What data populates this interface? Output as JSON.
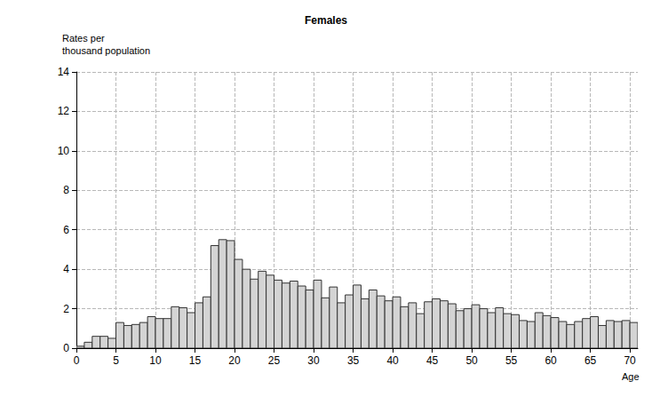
{
  "chart_data": {
    "type": "histogram",
    "title": "Females",
    "y_label": "Rates per\nthousand population",
    "x_label": "Age",
    "bins": [
      0,
      1,
      2,
      3,
      4,
      5,
      6,
      7,
      8,
      9,
      10,
      11,
      12,
      13,
      14,
      15,
      16,
      17,
      18,
      19,
      20,
      21,
      22,
      23,
      24,
      25,
      26,
      27,
      28,
      29,
      30,
      31,
      32,
      33,
      34,
      35,
      36,
      37,
      38,
      39,
      40,
      41,
      42,
      43,
      44,
      45,
      46,
      47,
      48,
      49,
      50,
      51,
      52,
      53,
      54,
      55,
      56,
      57,
      58,
      59,
      60,
      61,
      62,
      63,
      64,
      65,
      66,
      67,
      68,
      69,
      70,
      71
    ],
    "values": [
      0.1,
      0.3,
      0.6,
      0.6,
      0.5,
      1.3,
      1.15,
      1.2,
      1.3,
      1.6,
      1.5,
      1.5,
      2.1,
      2.05,
      1.8,
      2.3,
      2.6,
      5.2,
      5.5,
      5.45,
      4.5,
      4.0,
      3.5,
      3.9,
      3.7,
      3.45,
      3.3,
      3.4,
      3.15,
      2.95,
      3.45,
      2.55,
      3.1,
      2.3,
      2.7,
      3.2,
      2.5,
      2.95,
      2.65,
      2.4,
      2.6,
      2.1,
      2.3,
      1.75,
      2.35,
      2.5,
      2.4,
      2.25,
      1.9,
      2.0,
      2.2,
      2.0,
      1.8,
      2.05,
      1.75,
      1.7,
      1.4,
      1.35,
      1.8,
      1.65,
      1.55,
      1.35,
      1.2,
      1.35,
      1.5,
      1.6,
      1.15,
      1.4,
      1.35,
      1.4,
      1.3
    ],
    "color": "#d4d4d4",
    "xlim": [
      0,
      71
    ],
    "xticks": [
      0,
      5,
      10,
      15,
      20,
      25,
      30,
      35,
      40,
      45,
      50,
      55,
      60,
      65,
      70
    ],
    "ylim": [
      0,
      14
    ],
    "yticks": [
      0,
      2,
      4,
      6,
      8,
      10,
      12,
      14
    ],
    "grid": true
  }
}
